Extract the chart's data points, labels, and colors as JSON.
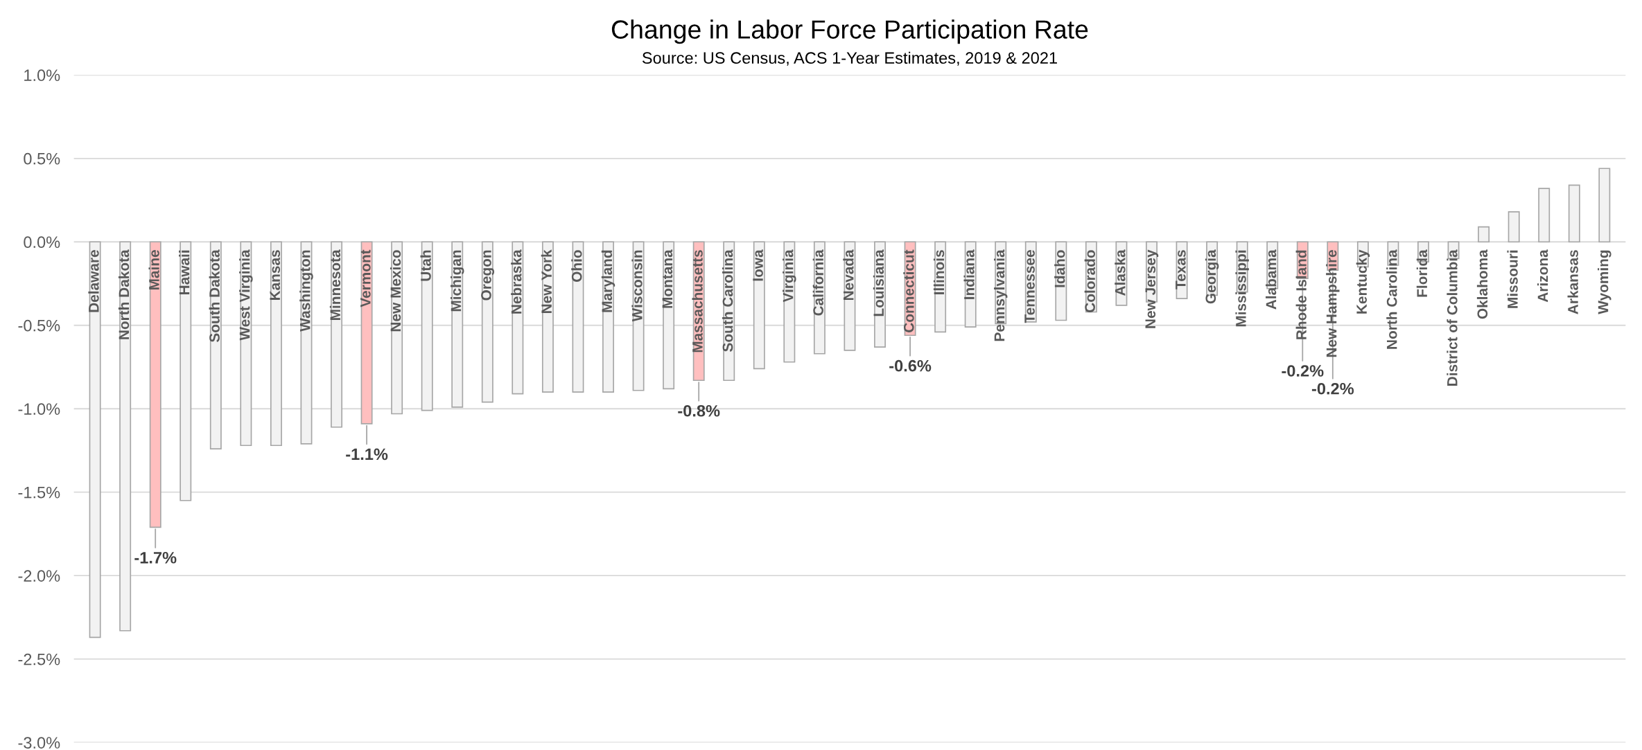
{
  "chart_data": {
    "type": "bar",
    "title": "Change in Labor Force Participation Rate",
    "subtitle": "Source: US Census, ACS 1-Year Estimates, 2019 & 2021",
    "categories": [
      "Delaware",
      "North Dakota",
      "Maine",
      "Hawaii",
      "South Dakota",
      "West Virginia",
      "Kansas",
      "Washington",
      "Minnesota",
      "Vermont",
      "New Mexico",
      "Utah",
      "Michigan",
      "Oregon",
      "Nebraska",
      "New York",
      "Ohio",
      "Maryland",
      "Wisconsin",
      "Montana",
      "Massachusetts",
      "South Carolina",
      "Iowa",
      "Virginia",
      "California",
      "Nevada",
      "Louisiana",
      "Connecticut",
      "Illinois",
      "Indiana",
      "Pennsylvania",
      "Tennessee",
      "Idaho",
      "Colorado",
      "Alaska",
      "New Jersey",
      "Texas",
      "Georgia",
      "Mississippi",
      "Alabama",
      "Rhode Island",
      "New Hampshire",
      "Kentucky",
      "North Carolina",
      "Florida",
      "District of Columbia",
      "Oklahoma",
      "Missouri",
      "Arizona",
      "Arkansas",
      "Wyoming"
    ],
    "values": [
      -2.37,
      -2.33,
      -1.71,
      -1.55,
      -1.24,
      -1.22,
      -1.22,
      -1.21,
      -1.11,
      -1.09,
      -1.03,
      -1.01,
      -0.99,
      -0.96,
      -0.91,
      -0.9,
      -0.9,
      -0.9,
      -0.89,
      -0.88,
      -0.83,
      -0.83,
      -0.76,
      -0.72,
      -0.67,
      -0.65,
      -0.63,
      -0.56,
      -0.54,
      -0.51,
      -0.49,
      -0.48,
      -0.47,
      -0.42,
      -0.38,
      -0.36,
      -0.34,
      -0.32,
      -0.3,
      -0.28,
      -0.22,
      -0.17,
      -0.15,
      -0.14,
      -0.12,
      -0.1,
      0.09,
      0.18,
      0.32,
      0.34,
      0.44
    ],
    "colors": [
      "#f2f2f2",
      "#f2f2f2",
      "#ffbfbf",
      "#f2f2f2",
      "#f2f2f2",
      "#f2f2f2",
      "#f2f2f2",
      "#f2f2f2",
      "#f2f2f2",
      "#ffbfbf",
      "#f2f2f2",
      "#f2f2f2",
      "#f2f2f2",
      "#f2f2f2",
      "#f2f2f2",
      "#f2f2f2",
      "#f2f2f2",
      "#f2f2f2",
      "#f2f2f2",
      "#f2f2f2",
      "#ffbfbf",
      "#f2f2f2",
      "#f2f2f2",
      "#f2f2f2",
      "#f2f2f2",
      "#f2f2f2",
      "#f2f2f2",
      "#ffbfbf",
      "#f2f2f2",
      "#f2f2f2",
      "#f2f2f2",
      "#f2f2f2",
      "#f2f2f2",
      "#f2f2f2",
      "#f2f2f2",
      "#f2f2f2",
      "#f2f2f2",
      "#f2f2f2",
      "#f2f2f2",
      "#f2f2f2",
      "#ffbfbf",
      "#ffbfbf",
      "#f2f2f2",
      "#f2f2f2",
      "#f2f2f2",
      "#f2f2f2",
      "#f2f2f2",
      "#f2f2f2",
      "#f2f2f2",
      "#f2f2f2",
      "#f2f2f2"
    ],
    "value_labels": [
      null,
      null,
      "-1.7%",
      null,
      null,
      null,
      null,
      null,
      null,
      "-1.1%",
      null,
      null,
      null,
      null,
      null,
      null,
      null,
      null,
      null,
      null,
      "-0.8%",
      null,
      null,
      null,
      null,
      null,
      null,
      "-0.6%",
      null,
      null,
      null,
      null,
      null,
      null,
      null,
      null,
      null,
      null,
      null,
      null,
      "-0.2%",
      "-0.2%",
      null,
      null,
      null,
      null,
      null,
      null,
      null,
      null,
      null
    ],
    "ylim": [
      -3.0,
      1.0
    ],
    "yticks": [
      {
        "value": -3.0,
        "label": "-3.0%"
      },
      {
        "value": -2.5,
        "label": "-2.5%"
      },
      {
        "value": -2.0,
        "label": "-2.0%"
      },
      {
        "value": -1.5,
        "label": "-1.5%"
      },
      {
        "value": -1.0,
        "label": "-1.0%"
      },
      {
        "value": -0.5,
        "label": "-0.5%"
      },
      {
        "value": 0.0,
        "label": "0.0%"
      },
      {
        "value": 0.5,
        "label": "0.5%"
      },
      {
        "value": 1.0,
        "label": "1.0%"
      }
    ],
    "grid": "y"
  }
}
